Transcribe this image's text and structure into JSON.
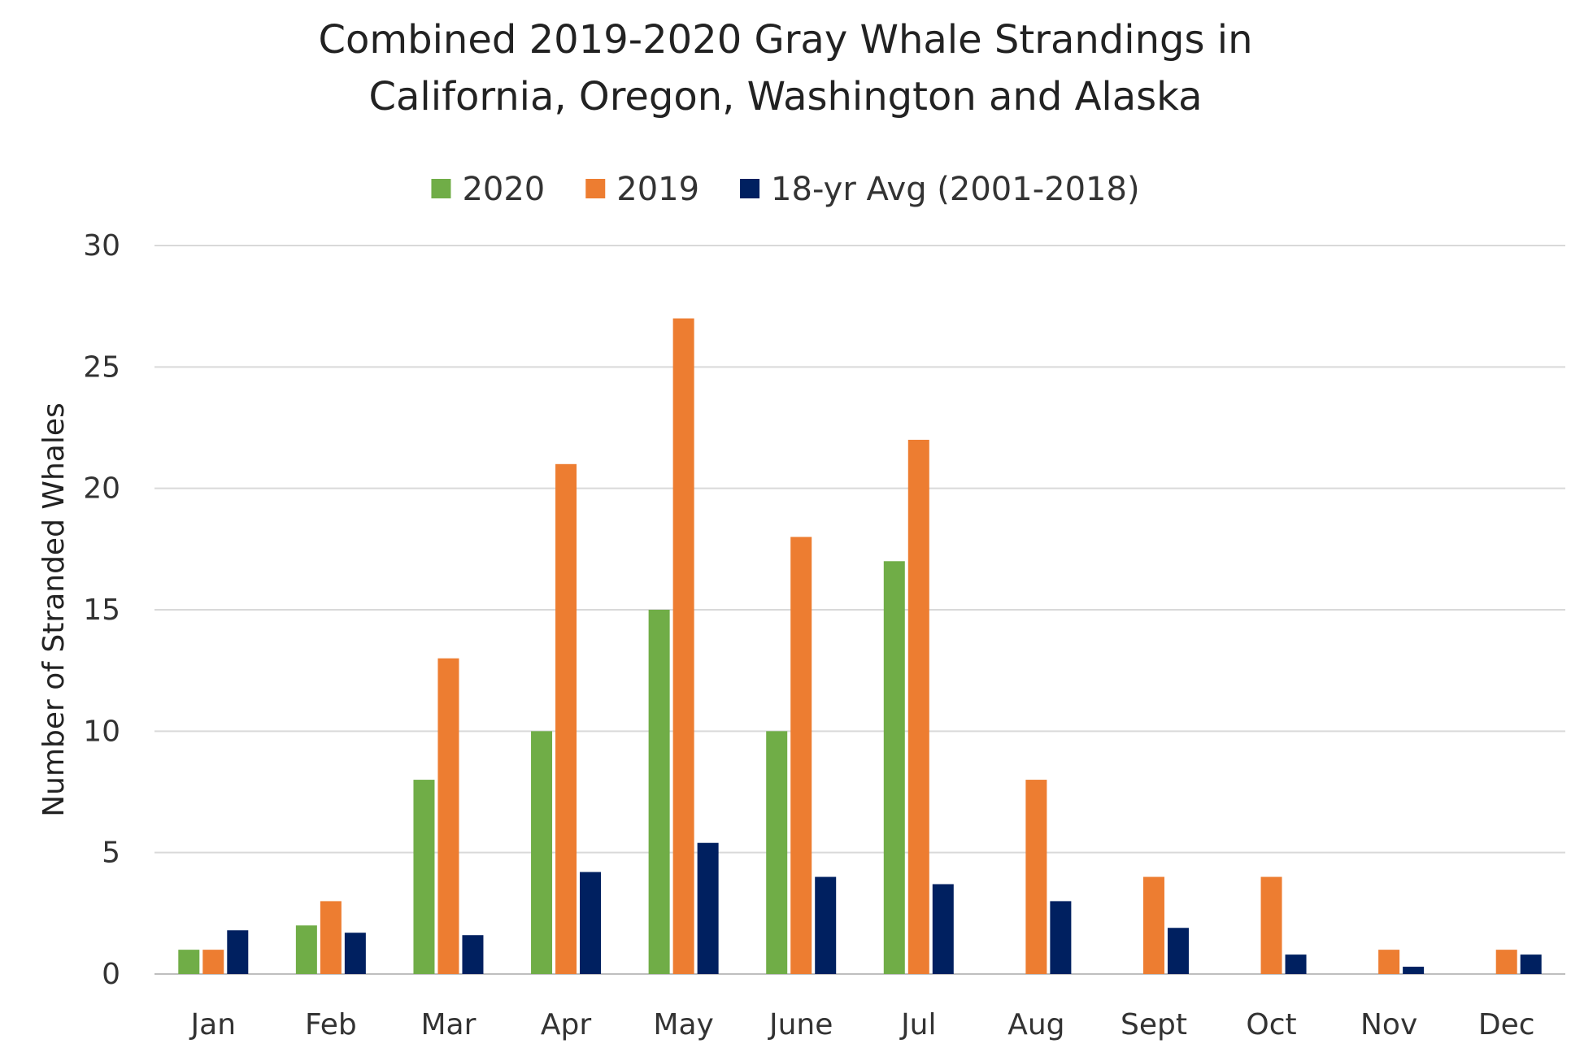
{
  "chart_data": {
    "type": "bar",
    "title_lines": [
      "Combined 2019-2020 Gray Whale Strandings in",
      "California, Oregon, Washington and Alaska"
    ],
    "xlabel": "",
    "ylabel": "Number of Stranded Whales",
    "ylim": [
      0,
      30
    ],
    "yticks": [
      0,
      5,
      10,
      15,
      20,
      25,
      30
    ],
    "grid": true,
    "legend_position": "top",
    "categories": [
      "Jan",
      "Feb",
      "Mar",
      "Apr",
      "May",
      "June",
      "Jul",
      "Aug",
      "Sept",
      "Oct",
      "Nov",
      "Dec"
    ],
    "series": [
      {
        "name": "2020",
        "color": "#70ad47",
        "values": [
          1,
          2,
          8,
          10,
          15,
          10,
          17,
          null,
          null,
          null,
          null,
          null
        ]
      },
      {
        "name": "2019",
        "color": "#ed7d31",
        "values": [
          1,
          3,
          13,
          21,
          27,
          18,
          22,
          8,
          4,
          4,
          1,
          1
        ]
      },
      {
        "name": "18-yr Avg (2001-2018)",
        "color": "#002060",
        "values": [
          1.8,
          1.7,
          1.6,
          4.2,
          5.4,
          4.0,
          3.7,
          3.0,
          1.9,
          0.8,
          0.3,
          0.8
        ]
      }
    ]
  }
}
